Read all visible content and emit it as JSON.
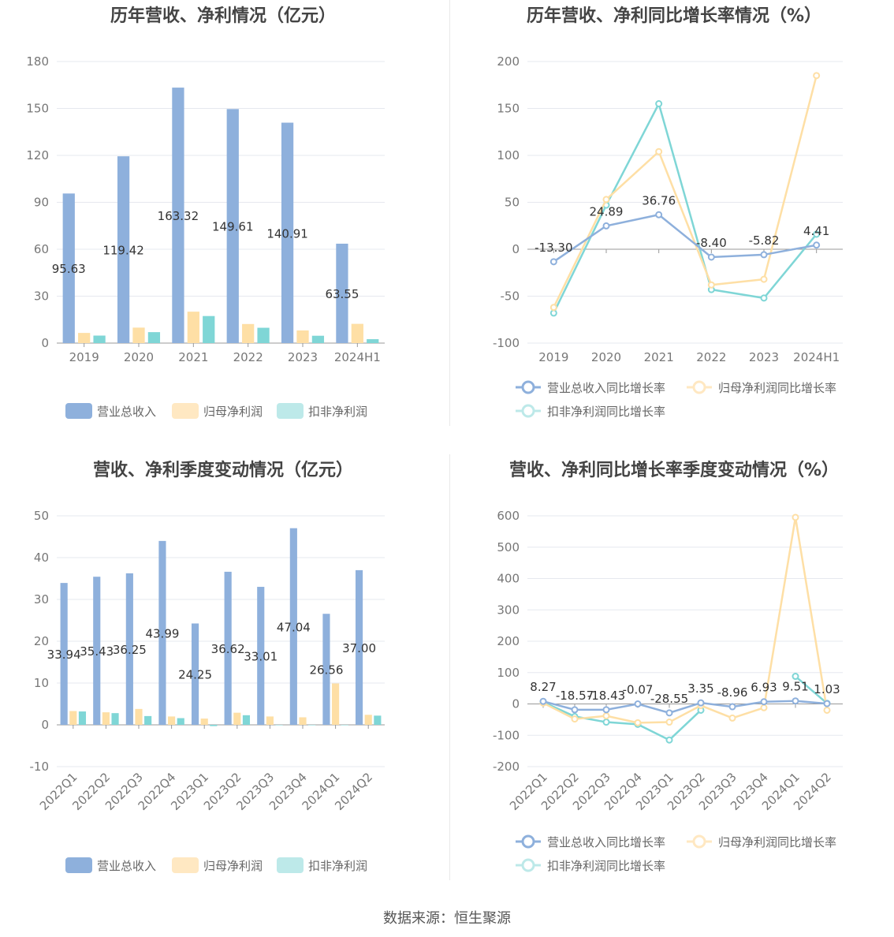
{
  "footer": "数据来源：恒生聚源",
  "colors": {
    "revenue": "#8eb0dc",
    "net_profit": "#fedfa5",
    "deducted_profit": "#7fd6d6",
    "legend_net_profit": "#ffe8c2",
    "legend_deducted": "#bde9e9",
    "grid": "#e6e8ef",
    "axis": "#999999",
    "title": "#444444"
  },
  "chart_data": [
    {
      "id": "annual-bars",
      "type": "bar",
      "title": "历年营收、净利情况（亿元）",
      "categories": [
        "2019",
        "2020",
        "2021",
        "2022",
        "2023",
        "2024H1"
      ],
      "ylim": [
        0,
        180
      ],
      "yticks": [
        0,
        30,
        60,
        90,
        120,
        150,
        180
      ],
      "series": [
        {
          "name": "营业总收入",
          "values": [
            95.63,
            119.42,
            163.32,
            149.61,
            140.91,
            63.55
          ],
          "labels": [
            "95.63",
            "119.42",
            "163.32",
            "149.61",
            "140.91",
            "63.55"
          ]
        },
        {
          "name": "归母净利润",
          "values": [
            6.5,
            9.9,
            20.1,
            12.2,
            8.1,
            12.3
          ]
        },
        {
          "name": "扣非净利润",
          "values": [
            4.8,
            7.0,
            17.3,
            9.8,
            4.7,
            2.5
          ]
        }
      ],
      "legend": "bottom",
      "grid": true
    },
    {
      "id": "annual-growth",
      "type": "line",
      "title": "历年营收、净利同比增长率情况（%）",
      "categories": [
        "2019",
        "2020",
        "2021",
        "2022",
        "2023",
        "2024H1"
      ],
      "ylim": [
        -100,
        200
      ],
      "yticks": [
        -100,
        -50,
        0,
        50,
        100,
        150,
        200
      ],
      "series": [
        {
          "name": "营业总收入同比增长率",
          "values": [
            -13.3,
            24.89,
            36.76,
            -8.4,
            -5.82,
            4.41
          ],
          "labels": [
            "-13.30",
            "24.89",
            "36.76",
            "-8.40",
            "-5.82",
            "4.41"
          ]
        },
        {
          "name": "归母净利润同比增长率",
          "values": [
            -62,
            53,
            104,
            -38,
            -32,
            185
          ]
        },
        {
          "name": "扣非净利润同比增长率",
          "values": [
            -68,
            47,
            155,
            -43,
            -52,
            16
          ]
        }
      ],
      "legend": "bottom",
      "grid": true
    },
    {
      "id": "quarterly-bars",
      "type": "bar",
      "title": "营收、净利季度变动情况（亿元）",
      "categories": [
        "2022Q1",
        "2022Q2",
        "2022Q3",
        "2022Q4",
        "2023Q1",
        "2023Q2",
        "2023Q3",
        "2023Q4",
        "2024Q1",
        "2024Q2"
      ],
      "ylim": [
        -10,
        50
      ],
      "yticks": [
        -10,
        0,
        10,
        20,
        30,
        40,
        50
      ],
      "series": [
        {
          "name": "营业总收入",
          "values": [
            33.94,
            35.43,
            36.25,
            43.99,
            24.25,
            36.62,
            33.01,
            47.04,
            26.56,
            37.0
          ],
          "labels": [
            "33.94",
            "35.43",
            "36.25",
            "43.99",
            "24.25",
            "36.62",
            "33.01",
            "47.04",
            "26.56",
            "37.00"
          ]
        },
        {
          "name": "归母净利润",
          "values": [
            3.3,
            3.0,
            3.8,
            2.0,
            1.5,
            2.9,
            2.0,
            1.8,
            9.9,
            2.4
          ]
        },
        {
          "name": "扣非净利润",
          "values": [
            3.2,
            2.8,
            2.1,
            1.6,
            -0.3,
            2.3,
            0,
            0,
            0,
            2.2
          ]
        }
      ],
      "legend": "bottom",
      "grid": true
    },
    {
      "id": "quarterly-growth",
      "type": "line",
      "title": "营收、净利同比增长率季度变动情况（%）",
      "categories": [
        "2022Q1",
        "2022Q2",
        "2022Q3",
        "2022Q4",
        "2023Q1",
        "2023Q2",
        "2023Q3",
        "2023Q4",
        "2024Q1",
        "2024Q2"
      ],
      "ylim": [
        -200,
        600
      ],
      "yticks": [
        -200,
        -100,
        0,
        100,
        200,
        300,
        400,
        500,
        600
      ],
      "series": [
        {
          "name": "营业总收入同比增长率",
          "values": [
            8.27,
            -18.57,
            -18.43,
            -0.07,
            -28.55,
            3.35,
            -8.96,
            6.93,
            9.51,
            1.03
          ],
          "labels": [
            "8.27",
            "-18.57",
            "-18.43",
            "-0.07",
            "-28.55",
            "3.35",
            "-8.96",
            "6.93",
            "9.51",
            "1.03"
          ]
        },
        {
          "name": "归母净利润同比增长率",
          "values": [
            3,
            -48,
            -38,
            -60,
            -58,
            -5,
            -45,
            -12,
            595,
            -20
          ]
        },
        {
          "name": "扣非净利润同比增长率",
          "values": [
            6,
            -40,
            -58,
            -65,
            -115,
            -20,
            null,
            null,
            88,
            2
          ]
        }
      ],
      "legend": "bottom",
      "grid": true
    }
  ]
}
